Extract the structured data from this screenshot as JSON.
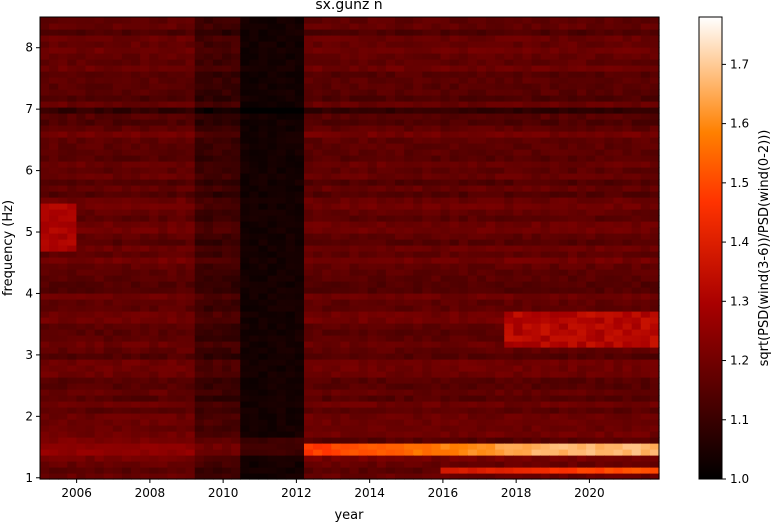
{
  "chart_data": {
    "type": "heatmap",
    "title": "sx.gunz n",
    "xlabel": "year",
    "ylabel": "frequency (Hz)",
    "xlim": [
      2005.0,
      2021.9
    ],
    "ylim": [
      0.98,
      8.5
    ],
    "x_ticks": [
      2006,
      2008,
      2010,
      2012,
      2014,
      2016,
      2018,
      2020
    ],
    "y_ticks": [
      1,
      2,
      3,
      4,
      5,
      6,
      7,
      8
    ],
    "colorbar": {
      "label": "sqrt(PSD(wind(3-6))/PSD(wind(0-2)))",
      "colormap": "gist_heat",
      "range": [
        1.0,
        1.78
      ],
      "ticks": [
        1.0,
        1.1,
        1.2,
        1.3,
        1.4,
        1.5,
        1.6,
        1.7
      ]
    },
    "features": [
      {
        "x": [
          2012.3,
          2021.9
        ],
        "y": 1.5,
        "value": 1.6
      },
      {
        "x": [
          2016.0,
          2021.9
        ],
        "y": 1.13,
        "value": 1.48
      },
      {
        "x": [
          2018.0,
          2021.9
        ],
        "y": 3.4,
        "value": 1.38
      },
      {
        "x": [
          2005.0,
          2006.0
        ],
        "y": 5.0,
        "value": 1.33
      },
      {
        "x": [
          2010.5,
          2012.0
        ],
        "y": [
          1.0,
          8.5
        ],
        "value": 1.02
      }
    ]
  }
}
